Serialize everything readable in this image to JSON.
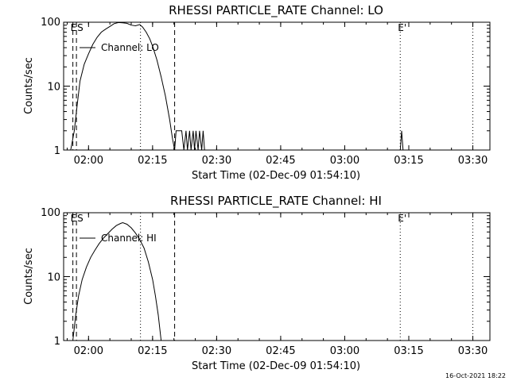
{
  "footer_timestamp": "16-Oct-2021 18:22",
  "chart_data": [
    {
      "type": "line",
      "title": "RHESSI PARTICLE_RATE Channel: LO",
      "xlabel": "Start Time (02-Dec-09 01:54:10)",
      "ylabel": "Counts/sec",
      "yscale": "log",
      "ylim": [
        1,
        100
      ],
      "xlim": [
        "01:54:10",
        "03:34:00"
      ],
      "x_ticks": [
        "02:00",
        "02:15",
        "02:30",
        "02:45",
        "03:00",
        "03:15",
        "03:30"
      ],
      "y_ticks": [
        "1",
        "10",
        "100"
      ],
      "legend": {
        "label": "Channel: LO",
        "placement": "top-left"
      },
      "markers": [
        {
          "label": "E",
          "time": "01:56:20",
          "style": "dashed"
        },
        {
          "label": "S",
          "time": "01:57:10",
          "style": "dashed"
        },
        {
          "label": "",
          "time": "02:12:10",
          "style": "dotted"
        },
        {
          "label": "",
          "time": "02:20:10",
          "style": "dashed"
        },
        {
          "label": "E'",
          "time": "03:13:00",
          "style": "dotted"
        },
        {
          "label": "",
          "time": "03:30:00",
          "style": "dotted"
        }
      ],
      "series": [
        {
          "name": "Channel: LO",
          "points": [
            [
              "01:55:50",
              1
            ],
            [
              "01:56:40",
              2
            ],
            [
              "01:57:20",
              5
            ],
            [
              "01:58:00",
              12
            ],
            [
              "01:59:00",
              22
            ],
            [
              "02:00:00",
              32
            ],
            [
              "02:01:00",
              45
            ],
            [
              "02:02:00",
              58
            ],
            [
              "02:03:00",
              70
            ],
            [
              "02:04:00",
              78
            ],
            [
              "02:05:00",
              86
            ],
            [
              "02:06:00",
              95
            ],
            [
              "02:07:00",
              99
            ],
            [
              "02:08:00",
              98
            ],
            [
              "02:09:00",
              96
            ],
            [
              "02:10:00",
              90
            ],
            [
              "02:11:00",
              88
            ],
            [
              "02:12:00",
              92
            ],
            [
              "02:12:40",
              84
            ],
            [
              "02:13:30",
              70
            ],
            [
              "02:14:20",
              55
            ],
            [
              "02:15:00",
              42
            ],
            [
              "02:16:00",
              26
            ],
            [
              "02:17:00",
              14
            ],
            [
              "02:18:00",
              7
            ],
            [
              "02:19:00",
              3
            ],
            [
              "02:19:40",
              1.5
            ],
            [
              "02:20:10",
              1
            ],
            [
              "02:20:30",
              2
            ],
            [
              "02:21:50",
              2
            ],
            [
              "02:22:20",
              1
            ],
            [
              "02:22:50",
              2
            ],
            [
              "02:23:10",
              1
            ],
            [
              "02:23:40",
              2
            ],
            [
              "02:24:00",
              1
            ],
            [
              "02:24:30",
              2
            ],
            [
              "02:24:50",
              1
            ],
            [
              "02:25:10",
              2
            ],
            [
              "02:25:40",
              1
            ],
            [
              "02:26:00",
              2
            ],
            [
              "02:26:30",
              1
            ],
            [
              "02:26:50",
              2
            ],
            [
              "02:27:10",
              1
            ],
            [
              "03:13:00",
              1
            ],
            [
              "03:13:20",
              2
            ],
            [
              "03:13:40",
              1
            ]
          ]
        }
      ]
    },
    {
      "type": "line",
      "title": "RHESSI PARTICLE_RATE Channel: HI",
      "xlabel": "Start Time (02-Dec-09 01:54:10)",
      "ylabel": "Counts/sec",
      "yscale": "log",
      "ylim": [
        1,
        100
      ],
      "xlim": [
        "01:54:10",
        "03:34:00"
      ],
      "x_ticks": [
        "02:00",
        "02:15",
        "02:30",
        "02:45",
        "03:00",
        "03:15",
        "03:30"
      ],
      "y_ticks": [
        "1",
        "10",
        "100"
      ],
      "legend": {
        "label": "Channel: HI",
        "placement": "top-left"
      },
      "markers": [
        {
          "label": "E",
          "time": "01:56:20",
          "style": "dashed"
        },
        {
          "label": "S",
          "time": "01:57:10",
          "style": "dashed"
        },
        {
          "label": "",
          "time": "02:12:10",
          "style": "dotted"
        },
        {
          "label": "",
          "time": "02:20:10",
          "style": "dashed"
        },
        {
          "label": "E'",
          "time": "03:13:00",
          "style": "dotted"
        },
        {
          "label": "",
          "time": "03:30:00",
          "style": "dotted"
        }
      ],
      "series": [
        {
          "name": "Channel: HI",
          "points": [
            [
              "01:56:20",
              1
            ],
            [
              "01:57:00",
              2.5
            ],
            [
              "01:57:40",
              5
            ],
            [
              "01:58:30",
              9
            ],
            [
              "01:59:30",
              14
            ],
            [
              "02:00:30",
              20
            ],
            [
              "02:01:30",
              26
            ],
            [
              "02:02:30",
              33
            ],
            [
              "02:03:30",
              40
            ],
            [
              "02:04:30",
              47
            ],
            [
              "02:05:30",
              55
            ],
            [
              "02:06:30",
              63
            ],
            [
              "02:07:30",
              68
            ],
            [
              "02:08:00",
              70
            ],
            [
              "02:09:00",
              66
            ],
            [
              "02:10:00",
              58
            ],
            [
              "02:11:00",
              48
            ],
            [
              "02:12:00",
              38
            ],
            [
              "02:13:00",
              28
            ],
            [
              "02:14:00",
              17
            ],
            [
              "02:15:00",
              9
            ],
            [
              "02:15:40",
              5
            ],
            [
              "02:16:20",
              2.5
            ],
            [
              "02:17:00",
              1
            ]
          ]
        }
      ]
    }
  ]
}
